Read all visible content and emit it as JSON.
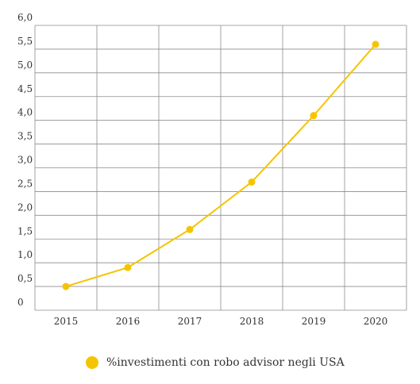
{
  "chart_data": {
    "type": "line",
    "title": "",
    "xlabel": "",
    "ylabel": "",
    "categories": [
      "2015",
      "2016",
      "2017",
      "2018",
      "2019",
      "2020"
    ],
    "series": [
      {
        "name": "%investimenti con robo advisor negli USA",
        "values": [
          0.5,
          0.9,
          1.7,
          2.7,
          4.1,
          5.6
        ],
        "color": "#f5c400"
      }
    ],
    "ylim": [
      0,
      6
    ],
    "yticks": [
      "0",
      "0,5",
      "1,0",
      "1,5",
      "2,0",
      "2,5",
      "3,0",
      "3,5",
      "4,0",
      "4,5",
      "5,0",
      "5,5",
      "6,0"
    ],
    "grid": true,
    "legend_position": "bottom-left"
  },
  "colors": {
    "series": "#f5c400",
    "grid": "#8c8c8c",
    "text": "#333333"
  }
}
